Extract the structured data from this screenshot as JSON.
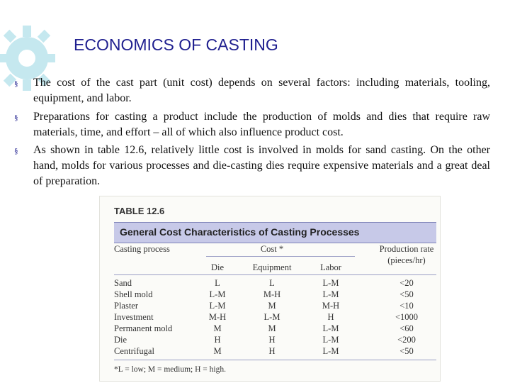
{
  "header": {
    "title": "ECONOMICS OF CASTING"
  },
  "bullets": [
    "The cost of the cast part (unit cost) depends on several factors: including materials, tooling, equipment, and labor.",
    "Preparations for casting a product include the production of molds and dies that require raw materials, time, and effort – all of which also influence product cost.",
    "As shown in table 12.6, relatively little cost is involved in molds for sand casting. On the other hand, molds for various processes and die-casting dies require expensive materials and a great deal of preparation."
  ],
  "bullet_marker": "§",
  "table": {
    "label": "TABLE 12.6",
    "caption": "General Cost Characteristics of Casting Processes",
    "header": {
      "process": "Casting process",
      "cost": "Cost *",
      "rate": [
        "Production rate",
        "(pieces/hr)"
      ]
    },
    "subheader": [
      "Die",
      "Equipment",
      "Labor"
    ],
    "rows": [
      [
        "Sand",
        "L",
        "L",
        "L-M",
        "<20"
      ],
      [
        "Shell mold",
        "L-M",
        "M-H",
        "L-M",
        "<50"
      ],
      [
        "Plaster",
        "L-M",
        "M",
        "M-H",
        "<10"
      ],
      [
        "Investment",
        "M-H",
        "L-M",
        "H",
        "<1000"
      ],
      [
        "Permanent mold",
        "M",
        "M",
        "L-M",
        "<60"
      ],
      [
        "Die",
        "H",
        "H",
        "L-M",
        "<200"
      ],
      [
        "Centrifugal",
        "M",
        "H",
        "L-M",
        "<50"
      ]
    ],
    "footnote": "*L = low; M = medium; H = high."
  }
}
